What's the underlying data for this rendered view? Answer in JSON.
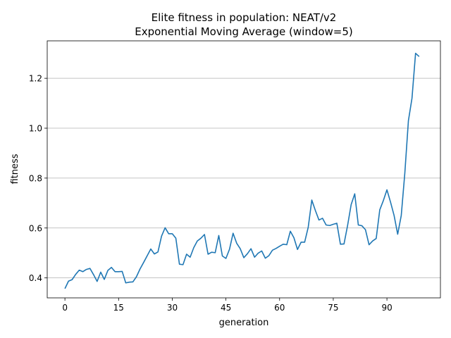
{
  "chart_data": {
    "type": "line",
    "title": "Elite fitness in population: NEAT/v2",
    "subtitle": "Exponential Moving Average (window=5)",
    "xlabel": "generation",
    "ylabel": "fitness",
    "xlim": [
      -4.95,
      104.95
    ],
    "ylim": [
      0.32,
      1.35
    ],
    "x_ticks": [
      0,
      15,
      30,
      45,
      60,
      75,
      90
    ],
    "y_ticks": [
      0.4,
      0.6,
      0.8,
      1.0,
      1.2
    ],
    "x_tick_labels": [
      "0",
      "15",
      "30",
      "45",
      "60",
      "75",
      "90"
    ],
    "y_tick_labels": [
      "0.4",
      "0.6",
      "0.8",
      "1.0",
      "1.2"
    ],
    "grid": "horizontal",
    "series": [
      {
        "color": "#1f77b4",
        "x": [
          0,
          1,
          2,
          3,
          4,
          5,
          6,
          7,
          8,
          9,
          10,
          11,
          12,
          13,
          14,
          15,
          16,
          17,
          18,
          19,
          20,
          21,
          22,
          23,
          24,
          25,
          26,
          27,
          28,
          29,
          30,
          31,
          32,
          33,
          34,
          35,
          36,
          37,
          38,
          39,
          40,
          41,
          42,
          43,
          44,
          45,
          46,
          47,
          48,
          49,
          50,
          51,
          52,
          53,
          54,
          55,
          56,
          57,
          58,
          59,
          60,
          61,
          62,
          63,
          64,
          65,
          66,
          67,
          68,
          69,
          70,
          71,
          72,
          73,
          74,
          75,
          76,
          77,
          78,
          79,
          80,
          81,
          82,
          83,
          84,
          85,
          86,
          87,
          88,
          89,
          90,
          91,
          92,
          93,
          94,
          95,
          96,
          97,
          98,
          99
        ],
        "y": [
          0.357,
          0.387,
          0.393,
          0.414,
          0.431,
          0.425,
          0.434,
          0.438,
          0.413,
          0.386,
          0.423,
          0.394,
          0.43,
          0.442,
          0.425,
          0.425,
          0.426,
          0.38,
          0.383,
          0.384,
          0.405,
          0.436,
          0.462,
          0.489,
          0.516,
          0.496,
          0.504,
          0.567,
          0.601,
          0.577,
          0.577,
          0.559,
          0.455,
          0.453,
          0.495,
          0.483,
          0.521,
          0.548,
          0.559,
          0.574,
          0.495,
          0.503,
          0.501,
          0.57,
          0.488,
          0.478,
          0.515,
          0.579,
          0.539,
          0.517,
          0.481,
          0.497,
          0.517,
          0.483,
          0.499,
          0.508,
          0.479,
          0.489,
          0.511,
          0.518,
          0.527,
          0.535,
          0.533,
          0.587,
          0.561,
          0.514,
          0.543,
          0.543,
          0.603,
          0.712,
          0.67,
          0.632,
          0.639,
          0.612,
          0.61,
          0.615,
          0.619,
          0.535,
          0.536,
          0.61,
          0.694,
          0.737,
          0.612,
          0.609,
          0.593,
          0.533,
          0.548,
          0.558,
          0.673,
          0.71,
          0.753,
          0.704,
          0.65,
          0.575,
          0.65,
          0.82,
          1.03,
          1.12,
          1.3,
          1.287
        ]
      }
    ]
  }
}
